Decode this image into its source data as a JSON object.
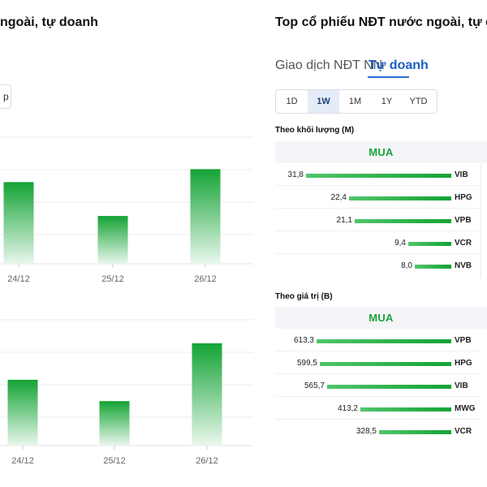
{
  "left": {
    "title": "ngoài, tự doanh",
    "button_partial": "p",
    "chart_top": {
      "type": "bar",
      "categories": [
        "24/12",
        "25/12",
        "26/12"
      ],
      "values": [
        82,
        48,
        95
      ],
      "ylim": [
        0,
        110
      ],
      "grid": true
    },
    "chart_bottom": {
      "type": "bar",
      "categories": [
        "24/12",
        "25/12",
        "26/12"
      ],
      "values": [
        74,
        50,
        115
      ],
      "ylim": [
        0,
        125
      ],
      "grid": true
    }
  },
  "right": {
    "title": "Top cổ phiếu NĐT nước ngoài, tự do",
    "tabs": [
      {
        "label": "Giao dịch NĐT NN",
        "active": false
      },
      {
        "label": "Tự doanh",
        "active": true
      }
    ],
    "periods": [
      {
        "label": "1D",
        "active": false
      },
      {
        "label": "1W",
        "active": true
      },
      {
        "label": "1M",
        "active": false
      },
      {
        "label": "1Y",
        "active": false
      },
      {
        "label": "YTD",
        "active": false
      }
    ],
    "volume_section": {
      "label": "Theo khối lượng (M)",
      "header": "MUA",
      "rows": [
        {
          "value": "31,8",
          "ticker": "VIB",
          "amount": 31.8
        },
        {
          "value": "22,4",
          "ticker": "HPG",
          "amount": 22.4
        },
        {
          "value": "21,1",
          "ticker": "VPB",
          "amount": 21.1
        },
        {
          "value": "9,4",
          "ticker": "VCR",
          "amount": 9.4
        },
        {
          "value": "8,0",
          "ticker": "NVB",
          "amount": 8.0
        }
      ]
    },
    "value_section": {
      "label": "Theo giá trị (B)",
      "header": "MUA",
      "rows": [
        {
          "value": "613,3",
          "ticker": "VPB",
          "amount": 613.3
        },
        {
          "value": "599,5",
          "ticker": "HPG",
          "amount": 599.5
        },
        {
          "value": "565,7",
          "ticker": "VIB",
          "amount": 565.7
        },
        {
          "value": "413,2",
          "ticker": "MWG",
          "amount": 413.2
        },
        {
          "value": "328,5",
          "ticker": "VCR",
          "amount": 328.5
        }
      ]
    }
  },
  "colors": {
    "bar_top": "#14a335",
    "bar_bottom": "#e9f7ec",
    "buy_green": "#1aa33a",
    "active_blue": "#1f5fbf"
  }
}
